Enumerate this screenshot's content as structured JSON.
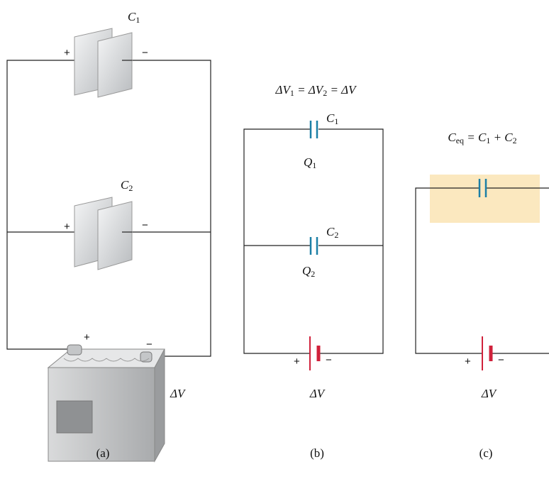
{
  "panel_a": {
    "c1_label": [
      "C",
      "1"
    ],
    "c1_plus": "+",
    "c1_minus": "−",
    "c2_label": [
      "C",
      "2"
    ],
    "c2_plus": "+",
    "c2_minus": "−",
    "battery_plus": "+",
    "battery_minus": "−",
    "voltage": "ΔV",
    "caption": "(a)"
  },
  "panel_b": {
    "equation": [
      "ΔV",
      "1",
      " = ΔV",
      "2",
      " = ΔV"
    ],
    "c1_label": [
      "C",
      "1"
    ],
    "q1_label": [
      "Q",
      "1"
    ],
    "c2_label": [
      "C",
      "2"
    ],
    "q2_label": [
      "Q",
      "2"
    ],
    "battery_plus": "+",
    "battery_minus": "−",
    "voltage": "ΔV",
    "caption": "(b)"
  },
  "panel_c": {
    "equation": [
      "C",
      "eq",
      " = C",
      "1",
      " + C",
      "2"
    ],
    "battery_plus": "+",
    "battery_minus": "−",
    "voltage": "ΔV",
    "caption": "(c)"
  }
}
